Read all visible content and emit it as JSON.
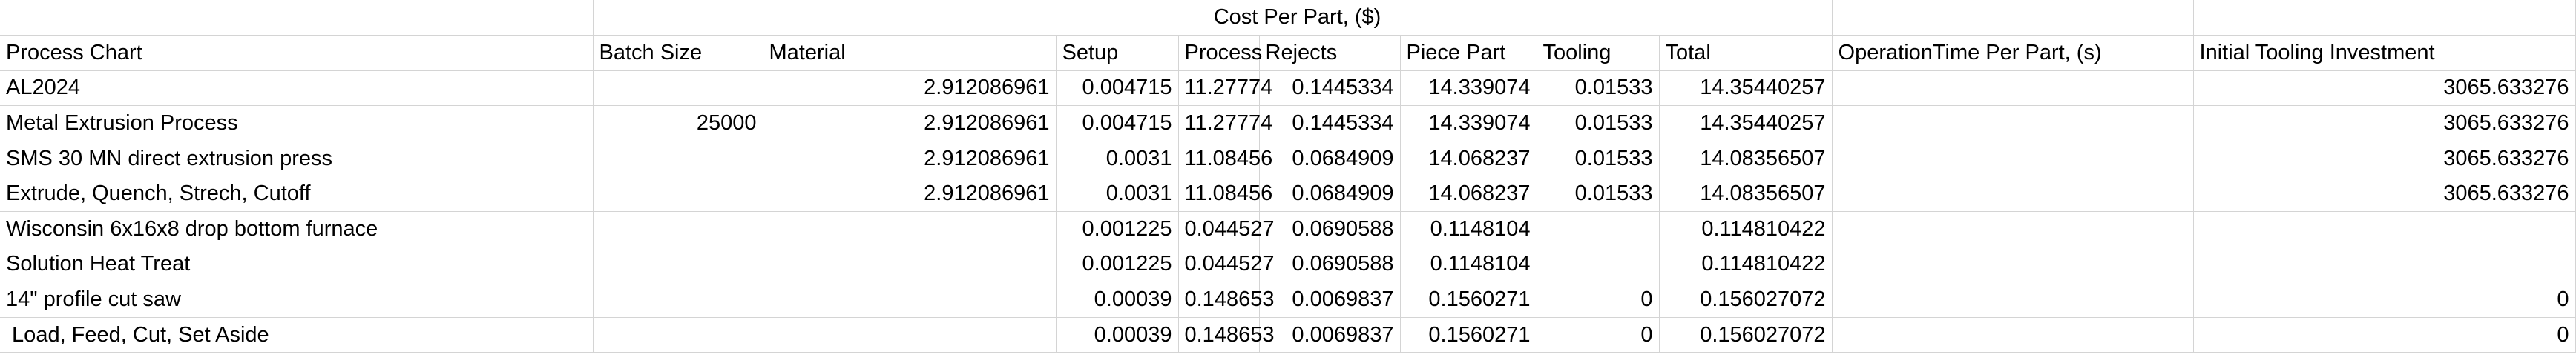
{
  "sheet": {
    "group_header": "Cost Per Part, ($)",
    "columns": [
      "Process Chart",
      "Batch Size",
      "Material",
      "Setup",
      "Process",
      "Rejects",
      "Piece Part",
      "Tooling",
      "Total",
      "OperationTime Per Part, (s)",
      "Initial Tooling Investment"
    ],
    "rows": [
      [
        "AL2024",
        "",
        "2.912086961",
        "0.004715",
        "11.27774",
        "0.1445334",
        "14.339074",
        "0.01533",
        "14.35440257",
        "",
        "3065.633276"
      ],
      [
        "Metal Extrusion Process",
        "25000",
        "2.912086961",
        "0.004715",
        "11.27774",
        "0.1445334",
        "14.339074",
        "0.01533",
        "14.35440257",
        "",
        "3065.633276"
      ],
      [
        "SMS 30 MN direct extrusion press",
        "",
        "2.912086961",
        "0.0031",
        "11.08456",
        "0.0684909",
        "14.068237",
        "0.01533",
        "14.08356507",
        "",
        "3065.633276"
      ],
      [
        "Extrude, Quench, Strech, Cutoff",
        "",
        "2.912086961",
        "0.0031",
        "11.08456",
        "0.0684909",
        "14.068237",
        "0.01533",
        "14.08356507",
        "",
        "3065.633276"
      ],
      [
        "Wisconsin 6x16x8 drop bottom furnace",
        "",
        "",
        "0.001225",
        "0.044527",
        "0.0690588",
        "0.1148104",
        "",
        "0.114810422",
        "",
        ""
      ],
      [
        "Solution Heat Treat",
        "",
        "",
        "0.001225",
        "0.044527",
        "0.0690588",
        "0.1148104",
        "",
        "0.114810422",
        "",
        ""
      ],
      [
        "14\" profile cut saw",
        "",
        "",
        "0.00039",
        "0.148653",
        "0.0069837",
        "0.1560271",
        "0",
        "0.156027072",
        "",
        "0"
      ],
      [
        " Load, Feed, Cut, Set Aside",
        "",
        "",
        "0.00039",
        "0.148653",
        "0.0069837",
        "0.1560271",
        "0",
        "0.156027072",
        "",
        "0"
      ]
    ]
  }
}
